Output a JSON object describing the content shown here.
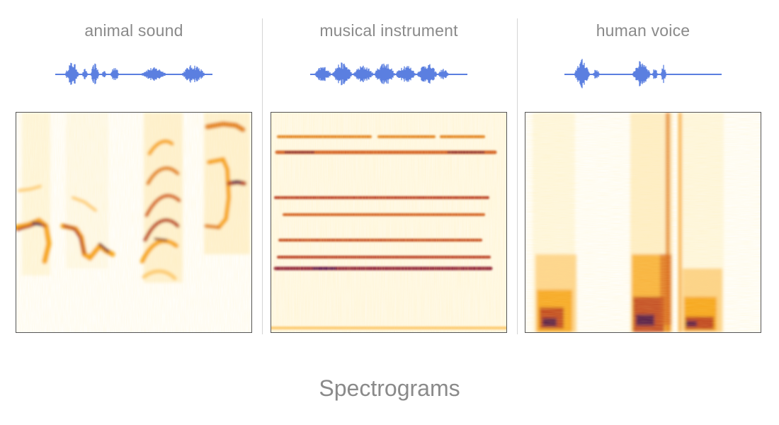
{
  "panels": [
    {
      "title": "animal sound",
      "waveform_color": "#5b7fe0",
      "spectrogram_kind": "animal-sound"
    },
    {
      "title": "musical instrument",
      "waveform_color": "#5b7fe0",
      "spectrogram_kind": "musical-instrument"
    },
    {
      "title": "human voice",
      "waveform_color": "#5b7fe0",
      "spectrogram_kind": "human-voice"
    }
  ],
  "caption": "Spectrograms",
  "colors": {
    "waveform": "#5b7fe0",
    "spectrogram_low": "#fde68a",
    "spectrogram_mid": "#f59e0b",
    "spectrogram_high": "#b4301c",
    "spectrogram_peak": "#3b0f4f"
  }
}
